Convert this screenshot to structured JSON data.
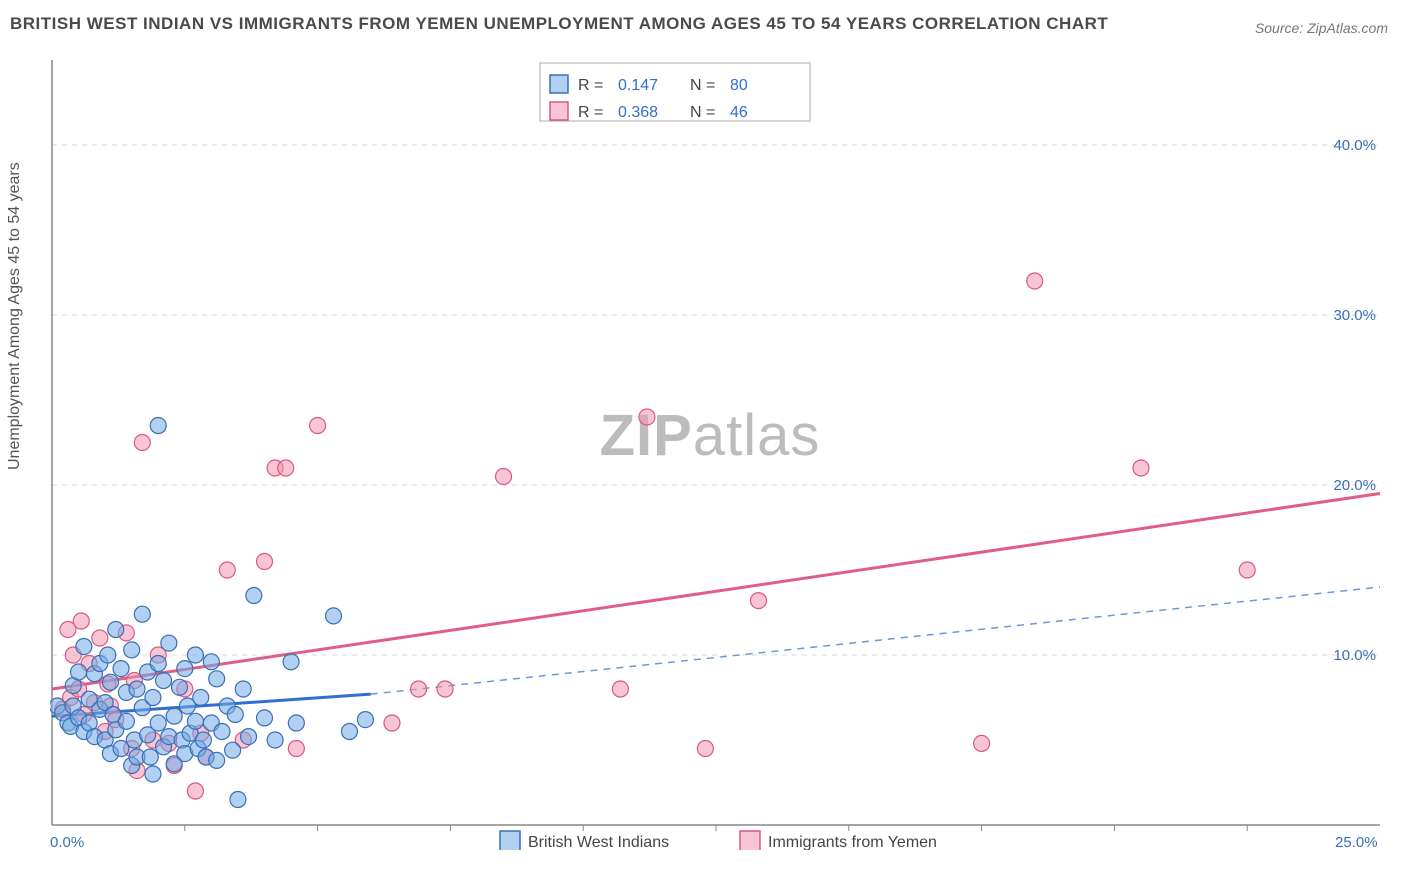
{
  "title": "BRITISH WEST INDIAN VS IMMIGRANTS FROM YEMEN UNEMPLOYMENT AMONG AGES 45 TO 54 YEARS CORRELATION CHART",
  "source": "Source: ZipAtlas.com",
  "ylabel": "Unemployment Among Ages 45 to 54 years",
  "watermark": {
    "part1": "ZIP",
    "part2": "atlas"
  },
  "chart": {
    "type": "scatter",
    "background_color": "#ffffff",
    "grid_color": "#d8d8d8",
    "axis_color": "#888888",
    "x": {
      "min": 0.0,
      "max": 25.0,
      "ticks": [
        0.0,
        25.0
      ],
      "tick_labels": [
        "0.0%",
        "25.0%"
      ]
    },
    "y": {
      "min": 0.0,
      "max": 45.0,
      "gridlines": [
        10.0,
        20.0,
        30.0,
        40.0
      ],
      "tick_labels": [
        "10.0%",
        "20.0%",
        "30.0%",
        "40.0%"
      ]
    },
    "marker_radius": 8,
    "marker_opacity": 0.55,
    "series": [
      {
        "name": "British West Indians",
        "fill": "#73aae6",
        "stroke": "#3b6fb5",
        "R": "0.147",
        "N": "80",
        "trend": {
          "solid_from": [
            0.0,
            6.4
          ],
          "solid_to": [
            6.0,
            7.7
          ],
          "dash_to": [
            25.0,
            14.0
          ],
          "solid_color": "#2f6fd0",
          "dash_color": "#6a9ad6"
        },
        "points": [
          [
            0.1,
            7.0
          ],
          [
            0.2,
            6.6
          ],
          [
            0.3,
            6.0
          ],
          [
            0.35,
            5.8
          ],
          [
            0.4,
            8.2
          ],
          [
            0.4,
            7.0
          ],
          [
            0.5,
            6.3
          ],
          [
            0.5,
            9.0
          ],
          [
            0.6,
            5.5
          ],
          [
            0.6,
            10.5
          ],
          [
            0.7,
            6.0
          ],
          [
            0.7,
            7.4
          ],
          [
            0.8,
            8.9
          ],
          [
            0.8,
            5.2
          ],
          [
            0.9,
            6.8
          ],
          [
            0.9,
            9.5
          ],
          [
            1.0,
            7.2
          ],
          [
            1.0,
            5.0
          ],
          [
            1.05,
            10.0
          ],
          [
            1.1,
            4.2
          ],
          [
            1.1,
            8.4
          ],
          [
            1.15,
            6.5
          ],
          [
            1.2,
            11.5
          ],
          [
            1.2,
            5.6
          ],
          [
            1.3,
            9.2
          ],
          [
            1.3,
            4.5
          ],
          [
            1.4,
            7.8
          ],
          [
            1.4,
            6.1
          ],
          [
            1.5,
            10.3
          ],
          [
            1.5,
            3.5
          ],
          [
            1.55,
            5.0
          ],
          [
            1.6,
            8.0
          ],
          [
            1.6,
            4.0
          ],
          [
            1.7,
            6.9
          ],
          [
            1.7,
            12.4
          ],
          [
            1.8,
            5.3
          ],
          [
            1.8,
            9.0
          ],
          [
            1.85,
            4.0
          ],
          [
            1.9,
            7.5
          ],
          [
            1.9,
            3.0
          ],
          [
            2.0,
            9.5
          ],
          [
            2.0,
            6.0
          ],
          [
            2.1,
            4.6
          ],
          [
            2.1,
            8.5
          ],
          [
            2.2,
            5.2
          ],
          [
            2.2,
            10.7
          ],
          [
            2.3,
            6.4
          ],
          [
            2.3,
            3.6
          ],
          [
            2.4,
            8.1
          ],
          [
            2.45,
            5.0
          ],
          [
            2.5,
            9.2
          ],
          [
            2.5,
            4.2
          ],
          [
            2.55,
            7.0
          ],
          [
            2.6,
            5.4
          ],
          [
            2.7,
            6.1
          ],
          [
            2.7,
            10.0
          ],
          [
            2.75,
            4.5
          ],
          [
            2.8,
            7.5
          ],
          [
            2.85,
            5.0
          ],
          [
            2.9,
            4.0
          ],
          [
            3.0,
            9.6
          ],
          [
            3.0,
            6.0
          ],
          [
            3.1,
            3.8
          ],
          [
            3.1,
            8.6
          ],
          [
            3.2,
            5.5
          ],
          [
            3.3,
            7.0
          ],
          [
            3.4,
            4.4
          ],
          [
            3.45,
            6.5
          ],
          [
            3.5,
            1.5
          ],
          [
            3.6,
            8.0
          ],
          [
            3.7,
            5.2
          ],
          [
            3.8,
            13.5
          ],
          [
            4.0,
            6.3
          ],
          [
            4.2,
            5.0
          ],
          [
            4.5,
            9.6
          ],
          [
            4.6,
            6.0
          ],
          [
            5.3,
            12.3
          ],
          [
            5.6,
            5.5
          ],
          [
            5.9,
            6.2
          ],
          [
            2.0,
            23.5
          ]
        ]
      },
      {
        "name": "Immigrants from Yemen",
        "fill": "#f096af",
        "stroke": "#d85a82",
        "R": "0.368",
        "N": "46",
        "trend": {
          "from": [
            0.0,
            8.0
          ],
          "to": [
            25.0,
            19.5
          ],
          "color": "#e05e85"
        },
        "points": [
          [
            0.2,
            6.8
          ],
          [
            0.3,
            11.5
          ],
          [
            0.35,
            7.5
          ],
          [
            0.4,
            10.0
          ],
          [
            0.5,
            8.0
          ],
          [
            0.55,
            12.0
          ],
          [
            0.6,
            6.5
          ],
          [
            0.7,
            9.5
          ],
          [
            0.8,
            7.2
          ],
          [
            0.9,
            11.0
          ],
          [
            1.0,
            5.5
          ],
          [
            1.05,
            8.3
          ],
          [
            1.1,
            7.0
          ],
          [
            1.2,
            6.2
          ],
          [
            1.4,
            11.3
          ],
          [
            1.5,
            4.5
          ],
          [
            1.55,
            8.5
          ],
          [
            1.6,
            3.2
          ],
          [
            1.7,
            22.5
          ],
          [
            1.9,
            5.0
          ],
          [
            2.0,
            10.0
          ],
          [
            2.2,
            4.8
          ],
          [
            2.3,
            3.5
          ],
          [
            2.5,
            8.0
          ],
          [
            2.7,
            2.0
          ],
          [
            2.8,
            5.4
          ],
          [
            2.9,
            4.0
          ],
          [
            3.3,
            15.0
          ],
          [
            3.6,
            5.0
          ],
          [
            4.0,
            15.5
          ],
          [
            4.2,
            21.0
          ],
          [
            4.4,
            21.0
          ],
          [
            4.6,
            4.5
          ],
          [
            5.0,
            23.5
          ],
          [
            6.4,
            6.0
          ],
          [
            6.9,
            8.0
          ],
          [
            7.4,
            8.0
          ],
          [
            8.5,
            20.5
          ],
          [
            10.7,
            8.0
          ],
          [
            11.2,
            24.0
          ],
          [
            12.3,
            4.5
          ],
          [
            13.3,
            13.2
          ],
          [
            17.5,
            4.8
          ],
          [
            18.5,
            32.0
          ],
          [
            20.5,
            21.0
          ],
          [
            22.5,
            15.0
          ]
        ]
      }
    ],
    "top_legend": {
      "rows": [
        {
          "swatch": "blue",
          "R_label": "R =",
          "R": "0.147",
          "N_label": "N =",
          "N": "80"
        },
        {
          "swatch": "pink",
          "R_label": "R =",
          "R": "0.368",
          "N_label": "N =",
          "N": "46"
        }
      ]
    },
    "bottom_legend": {
      "items": [
        {
          "swatch": "blue",
          "label": "British West Indians"
        },
        {
          "swatch": "pink",
          "label": "Immigrants from Yemen"
        }
      ]
    }
  }
}
